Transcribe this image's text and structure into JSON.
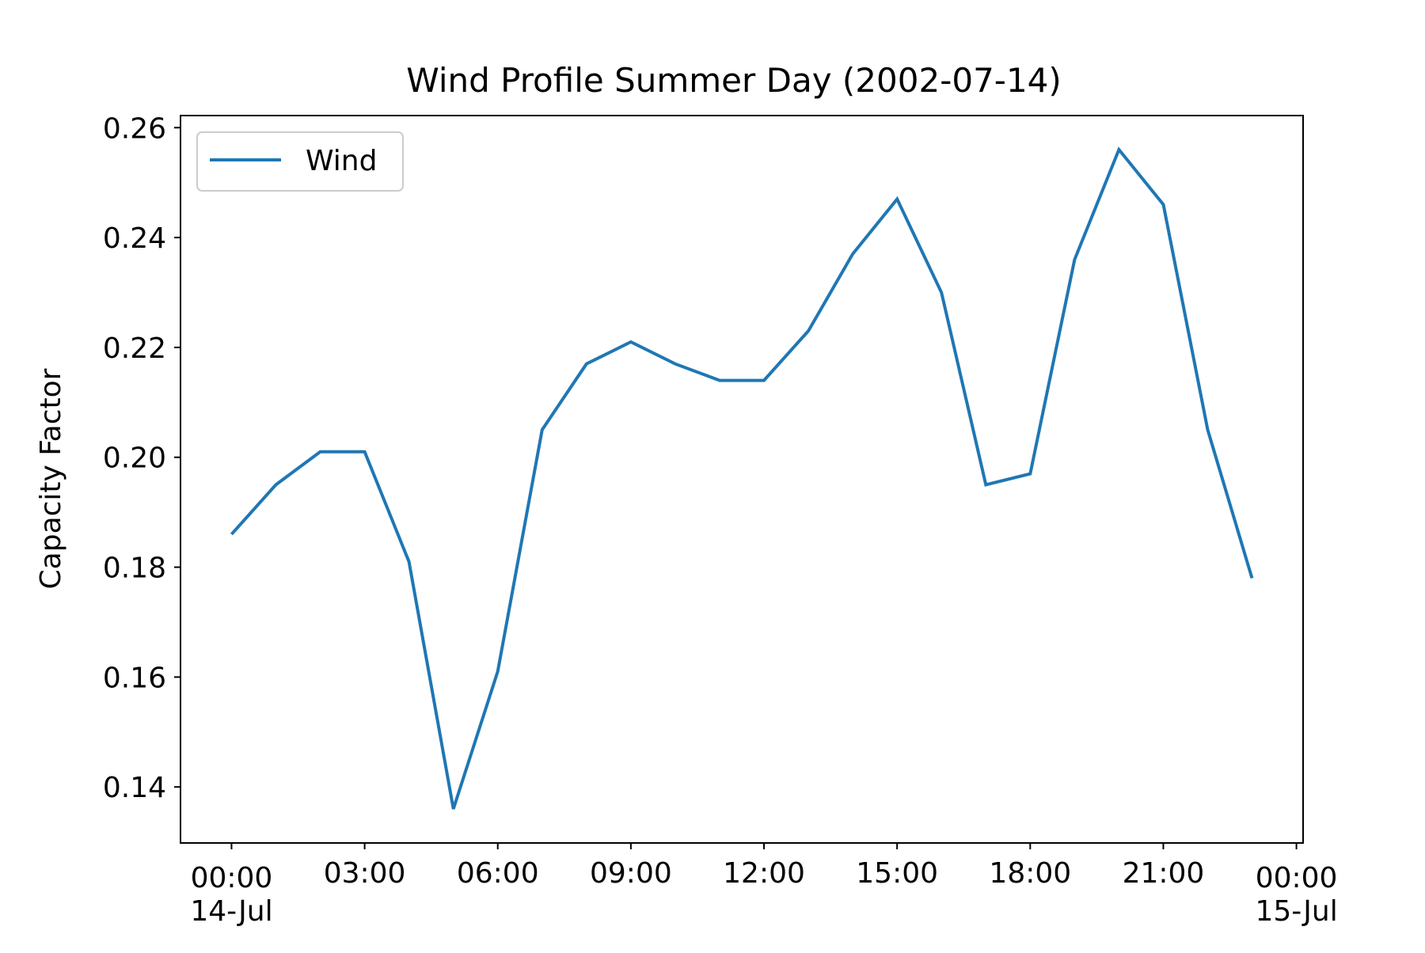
{
  "chart_data": {
    "type": "line",
    "title": "Wind Profile Summer Day (2002-07-14)",
    "xlabel": "",
    "ylabel": "Capacity Factor",
    "x": [
      "00:00",
      "01:00",
      "02:00",
      "03:00",
      "04:00",
      "05:00",
      "06:00",
      "07:00",
      "08:00",
      "09:00",
      "10:00",
      "11:00",
      "12:00",
      "13:00",
      "14:00",
      "15:00",
      "16:00",
      "17:00",
      "18:00",
      "19:00",
      "20:00",
      "21:00",
      "22:00",
      "23:00"
    ],
    "xlim": [
      "2002-07-13 22:52",
      "2002-07-15 00:08"
    ],
    "x_ticks": [
      {
        "time": "00:00",
        "label": "00:00",
        "sublabel": "14-Jul"
      },
      {
        "time": "03:00",
        "label": "03:00",
        "sublabel": ""
      },
      {
        "time": "06:00",
        "label": "06:00",
        "sublabel": ""
      },
      {
        "time": "09:00",
        "label": "09:00",
        "sublabel": ""
      },
      {
        "time": "12:00",
        "label": "12:00",
        "sublabel": ""
      },
      {
        "time": "15:00",
        "label": "15:00",
        "sublabel": ""
      },
      {
        "time": "18:00",
        "label": "18:00",
        "sublabel": ""
      },
      {
        "time": "21:00",
        "label": "21:00",
        "sublabel": ""
      },
      {
        "time": "00:00 (next day)",
        "label": "00:00",
        "sublabel": "15-Jul"
      }
    ],
    "series": [
      {
        "name": "Wind",
        "color": "#1f77b4",
        "values": [
          0.186,
          0.195,
          0.201,
          0.201,
          0.181,
          0.136,
          0.161,
          0.205,
          0.217,
          0.221,
          0.217,
          0.214,
          0.214,
          0.223,
          0.237,
          0.247,
          0.23,
          0.195,
          0.197,
          0.236,
          0.256,
          0.246,
          0.205,
          0.178
        ]
      }
    ],
    "ylim": [
      0.1298,
      0.2622
    ],
    "y_ticks": [
      "0.14",
      "0.16",
      "0.18",
      "0.20",
      "0.22",
      "0.24",
      "0.26"
    ],
    "grid": false,
    "legend": "upper left"
  }
}
